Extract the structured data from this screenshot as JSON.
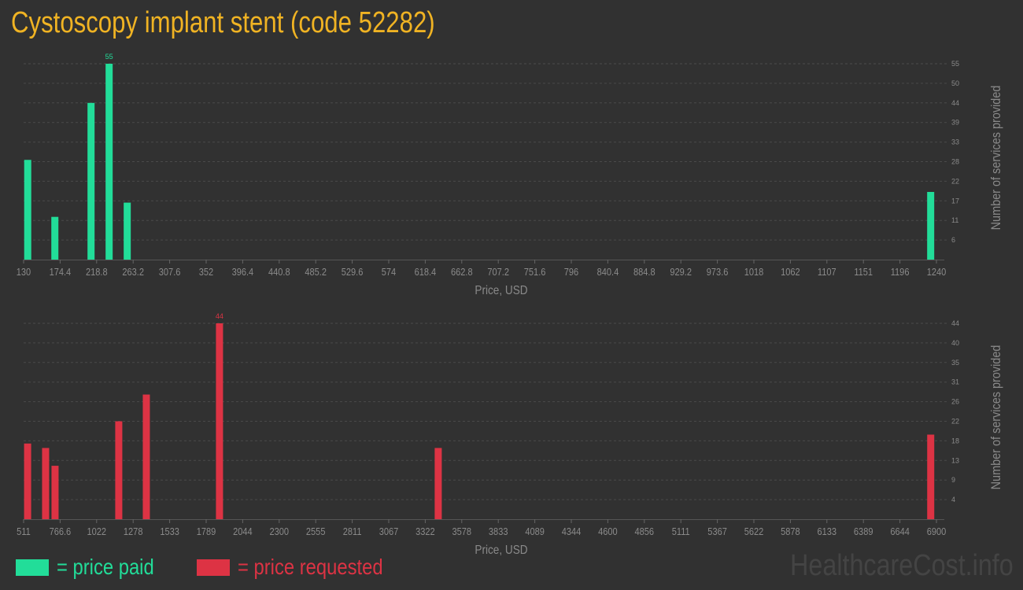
{
  "title": "Cystoscopy implant stent (code 52282)",
  "legend": {
    "paid": "= price paid",
    "requested": "= price requested"
  },
  "brand": "HealthcareCost.info",
  "colors": {
    "paid": "#22dd99",
    "requested": "#dd3344",
    "title": "#f0b323",
    "background": "#313131"
  },
  "chart_data": [
    {
      "type": "bar",
      "xlabel": "Price, USD",
      "ylabel": "Number of services provided",
      "xlim": [
        130,
        1240
      ],
      "ylim": [
        0,
        55
      ],
      "grid": true,
      "x_ticks": [
        "130",
        "174.4",
        "218.8",
        "263.2",
        "307.6",
        "352",
        "396.4",
        "440.8",
        "485.2",
        "529.6",
        "574",
        "618.4",
        "662.8",
        "707.2",
        "751.6",
        "796",
        "840.4",
        "884.8",
        "929.2",
        "973.6",
        "1018",
        "1062",
        "1107",
        "1151",
        "1196",
        "1240"
      ],
      "y_ticks": [
        "6",
        "11",
        "17",
        "22",
        "28",
        "33",
        "39",
        "44",
        "50",
        "55"
      ],
      "x": [
        135,
        168,
        212,
        234,
        256,
        1233
      ],
      "values": [
        28,
        12,
        44,
        55,
        16,
        19
      ],
      "max_label": "55",
      "color": "#22dd99"
    },
    {
      "type": "bar",
      "xlabel": "Price, USD",
      "ylabel": "Number of services provided",
      "xlim": [
        511,
        6900
      ],
      "ylim": [
        0,
        44
      ],
      "grid": true,
      "x_ticks": [
        "511",
        "766.6",
        "1022",
        "1278",
        "1533",
        "1789",
        "2044",
        "2300",
        "2555",
        "2811",
        "3067",
        "3322",
        "3578",
        "3833",
        "4089",
        "4344",
        "4600",
        "4856",
        "5111",
        "5367",
        "5622",
        "5878",
        "6133",
        "6389",
        "6644",
        "6900"
      ],
      "y_ticks": [
        "4",
        "9",
        "13",
        "18",
        "22",
        "26",
        "31",
        "35",
        "40",
        "44"
      ],
      "x": [
        539,
        665,
        731,
        1177,
        1370,
        1882,
        3413,
        6860
      ],
      "values": [
        17,
        16,
        12,
        22,
        28,
        44,
        16,
        19
      ],
      "max_label": "44",
      "color": "#dd3344"
    }
  ]
}
